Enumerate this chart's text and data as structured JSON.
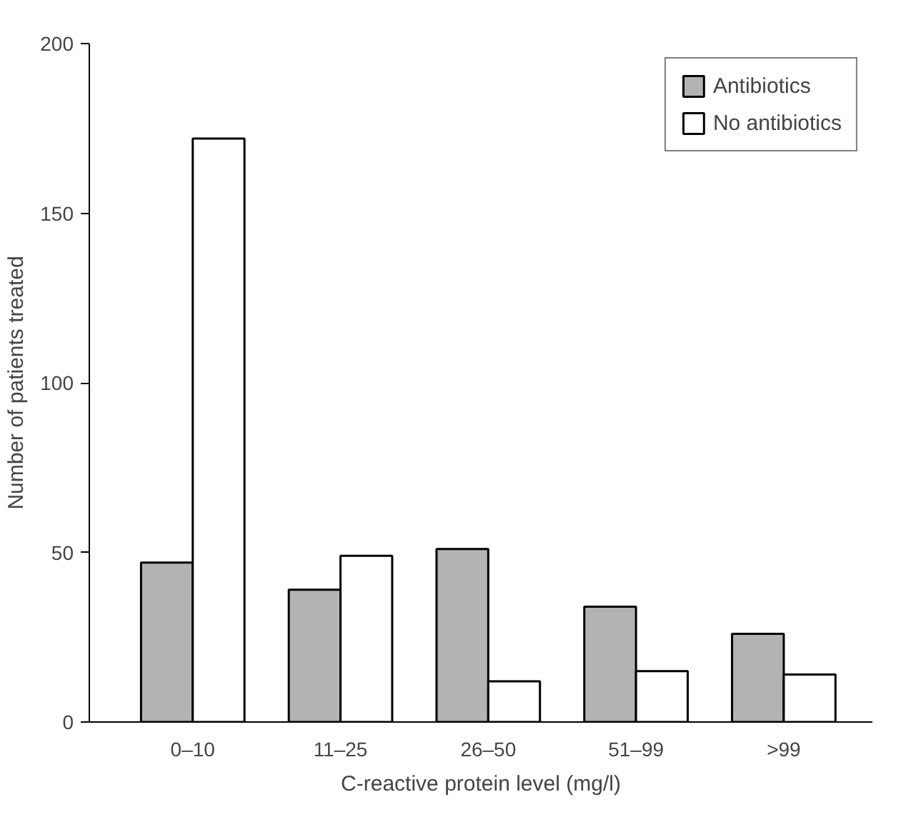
{
  "chart_data": {
    "type": "bar",
    "xlabel": "C-reactive protein level (mg/l)",
    "ylabel": "Number of patients treated",
    "categories": [
      "0–10",
      "11–25",
      "26–50",
      "51–99",
      ">99"
    ],
    "series": [
      {
        "name": "Antibiotics",
        "color": "#b3b3b3",
        "values": [
          47,
          39,
          51,
          34,
          26
        ]
      },
      {
        "name": "No antibiotics",
        "color": "#ffffff",
        "values": [
          172,
          49,
          12,
          15,
          14
        ]
      }
    ],
    "ylim": [
      0,
      200
    ],
    "yticks": [
      0,
      50,
      100,
      150,
      200
    ],
    "grid": false,
    "legend": "top right"
  }
}
